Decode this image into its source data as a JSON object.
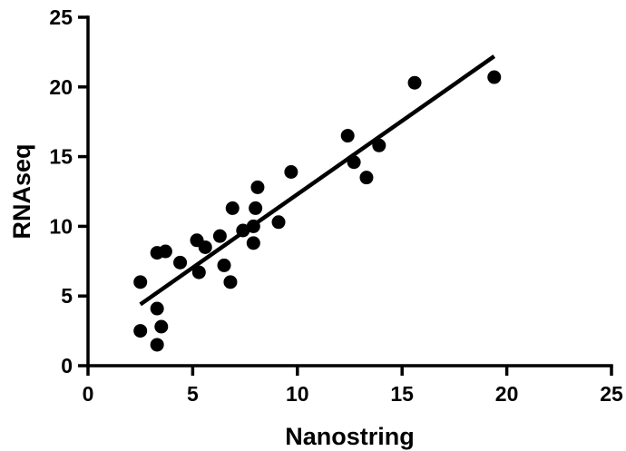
{
  "chart_data": {
    "type": "scatter",
    "title": "",
    "xlabel": "Nanostring",
    "ylabel": "RNAseq",
    "xlim": [
      0,
      25
    ],
    "ylim": [
      0,
      25
    ],
    "xticks": [
      0,
      5,
      10,
      15,
      20,
      25
    ],
    "yticks": [
      0,
      5,
      10,
      15,
      20,
      25
    ],
    "grid": false,
    "legend": "none",
    "color": "#000000",
    "series": [
      {
        "points": [
          {
            "x": 2.5,
            "y": 6.0
          },
          {
            "x": 2.5,
            "y": 2.5
          },
          {
            "x": 3.3,
            "y": 8.1
          },
          {
            "x": 3.3,
            "y": 4.1
          },
          {
            "x": 3.3,
            "y": 1.5
          },
          {
            "x": 3.5,
            "y": 2.8
          },
          {
            "x": 3.7,
            "y": 8.2
          },
          {
            "x": 4.4,
            "y": 7.4
          },
          {
            "x": 5.2,
            "y": 9.0
          },
          {
            "x": 5.3,
            "y": 6.7
          },
          {
            "x": 5.6,
            "y": 8.5
          },
          {
            "x": 6.3,
            "y": 9.3
          },
          {
            "x": 6.5,
            "y": 7.2
          },
          {
            "x": 6.8,
            "y": 6.0
          },
          {
            "x": 6.9,
            "y": 11.3
          },
          {
            "x": 7.4,
            "y": 9.7
          },
          {
            "x": 7.9,
            "y": 10.0
          },
          {
            "x": 7.9,
            "y": 8.8
          },
          {
            "x": 8.0,
            "y": 11.3
          },
          {
            "x": 8.1,
            "y": 12.8
          },
          {
            "x": 9.1,
            "y": 10.3
          },
          {
            "x": 9.7,
            "y": 13.9
          },
          {
            "x": 12.4,
            "y": 16.5
          },
          {
            "x": 12.7,
            "y": 14.6
          },
          {
            "x": 13.3,
            "y": 13.5
          },
          {
            "x": 13.9,
            "y": 15.8
          },
          {
            "x": 15.6,
            "y": 20.3
          },
          {
            "x": 19.4,
            "y": 20.7
          }
        ]
      }
    ],
    "fit_line": {
      "x1": 2.5,
      "y1": 4.4,
      "x2": 19.4,
      "y2": 22.2
    }
  }
}
